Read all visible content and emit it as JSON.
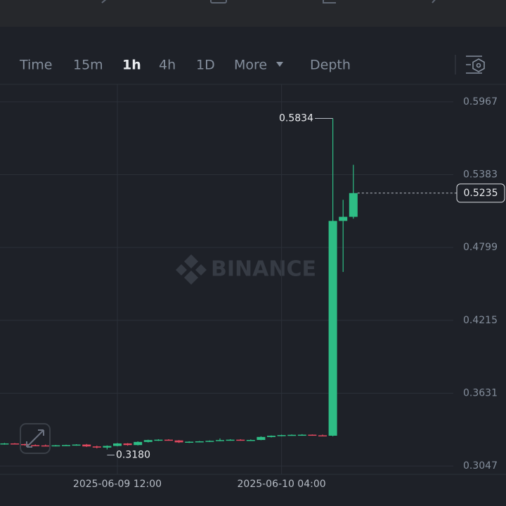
{
  "toolbar": {
    "items": [
      "Time",
      "15m",
      "1h",
      "4h",
      "1D",
      "More",
      "Depth"
    ],
    "active_index": 2
  },
  "chart_data": {
    "type": "candlestick",
    "watermark": "BINANCE",
    "categories": [
      null,
      null,
      null,
      null,
      null,
      null,
      null,
      null,
      null,
      null,
      null,
      "2025-06-09 12:00",
      null,
      null,
      null,
      null,
      null,
      null,
      null,
      null,
      null,
      null,
      null,
      null,
      null,
      null,
      null,
      "2025-06-10 04:00",
      null,
      null,
      null,
      null,
      null,
      null,
      null
    ],
    "open": [
      0.3225,
      0.3228,
      0.3223,
      0.3214,
      0.3212,
      0.3208,
      0.3213,
      0.3215,
      0.3219,
      0.3204,
      0.3195,
      0.3208,
      0.3228,
      0.3215,
      0.324,
      0.3255,
      0.3258,
      0.3252,
      0.3237,
      0.3242,
      0.3245,
      0.3249,
      0.3255,
      0.3258,
      0.3253,
      0.3256,
      0.328,
      0.329,
      0.3295,
      0.3297,
      0.3298,
      0.3293,
      0.329,
      0.5012,
      0.5045
    ],
    "high": [
      0.3232,
      0.3231,
      0.3226,
      0.322,
      0.3219,
      0.3216,
      0.3218,
      0.3222,
      0.3224,
      0.321,
      0.3212,
      0.3232,
      0.3231,
      0.3245,
      0.3258,
      0.3262,
      0.3262,
      0.3255,
      0.3245,
      0.3248,
      0.3252,
      0.3268,
      0.3262,
      0.3262,
      0.326,
      0.3285,
      0.3292,
      0.3298,
      0.33,
      0.3302,
      0.33,
      0.3299,
      0.5834,
      0.5181,
      0.5462
    ],
    "low": [
      0.3218,
      0.322,
      0.321,
      0.3209,
      0.3205,
      0.3204,
      0.3208,
      0.321,
      0.32,
      0.3188,
      0.318,
      0.3205,
      0.321,
      0.3212,
      0.3236,
      0.3248,
      0.325,
      0.3232,
      0.3232,
      0.3238,
      0.324,
      0.3246,
      0.325,
      0.325,
      0.3248,
      0.3254,
      0.3276,
      0.3285,
      0.329,
      0.3292,
      0.329,
      0.3288,
      0.3285,
      0.4603,
      0.503
    ],
    "close": [
      0.3228,
      0.3223,
      0.3214,
      0.3212,
      0.3208,
      0.3213,
      0.3215,
      0.3219,
      0.3204,
      0.3195,
      0.3208,
      0.3228,
      0.3215,
      0.324,
      0.3255,
      0.3258,
      0.3252,
      0.3237,
      0.3242,
      0.3245,
      0.3249,
      0.3255,
      0.3258,
      0.3253,
      0.3256,
      0.328,
      0.329,
      0.3295,
      0.3297,
      0.3298,
      0.3293,
      0.329,
      0.5012,
      0.5045,
      0.5235
    ],
    "low_label": "0.3180",
    "up_color": "#2ebd85",
    "down_color": "#e0485e",
    "ylim": [
      0.298,
      0.6107
    ],
    "yticks": [
      0.3047,
      0.3631,
      0.4215,
      0.4799,
      0.5383,
      0.5967
    ],
    "grid": true
  }
}
